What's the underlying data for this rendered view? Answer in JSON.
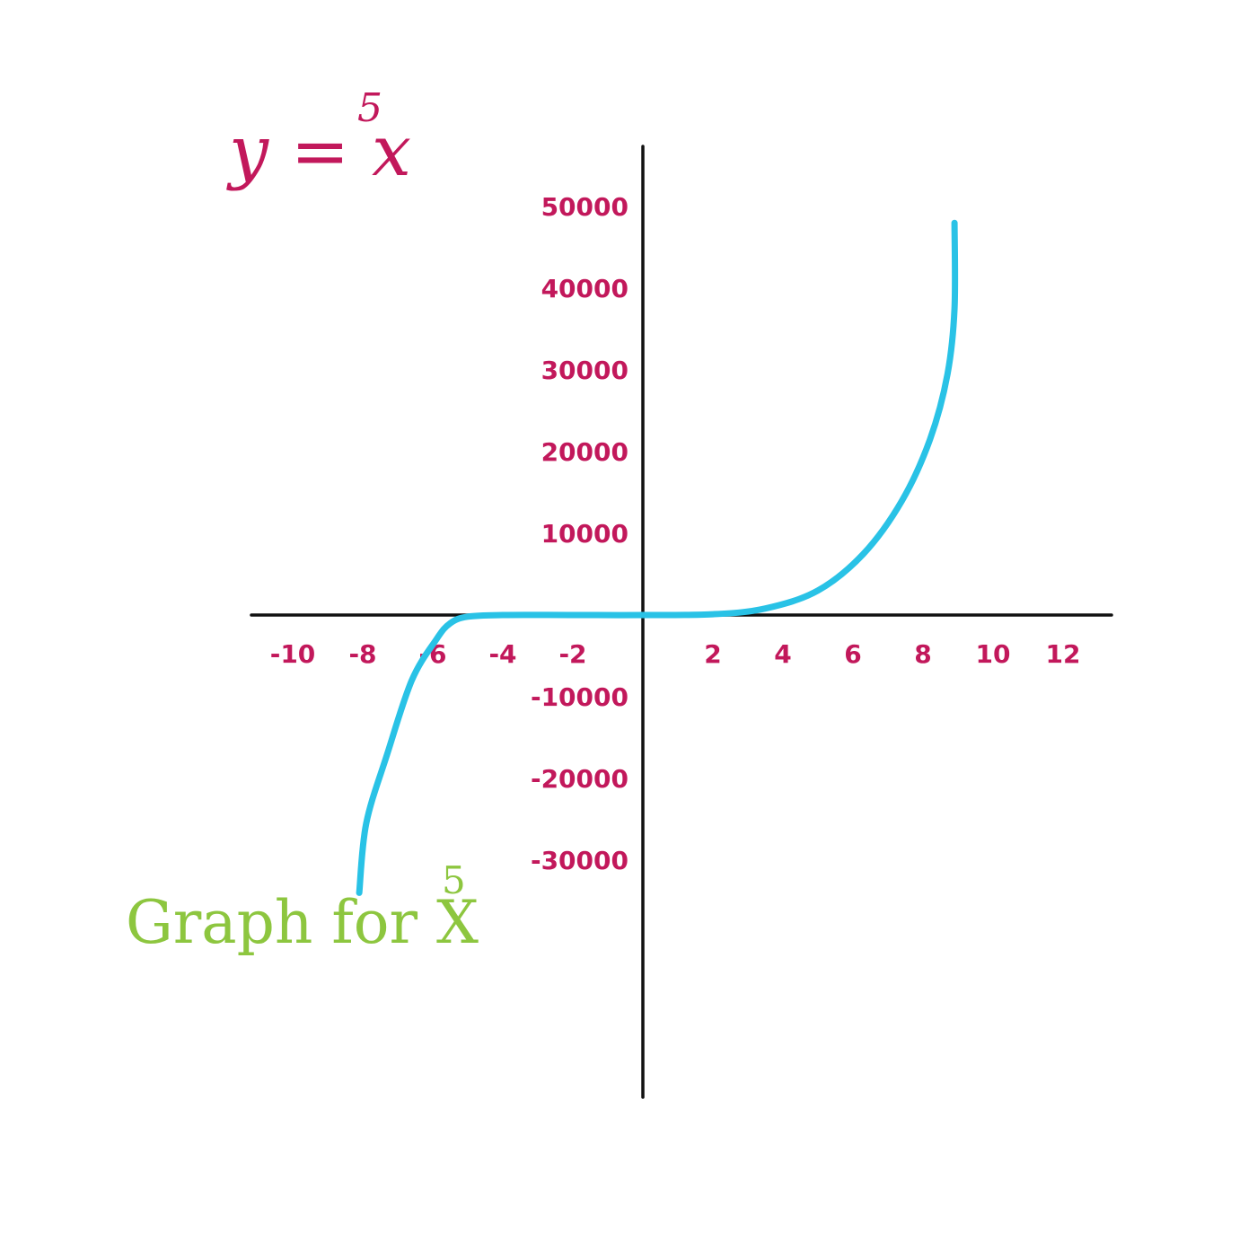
{
  "equation": {
    "base": "y = x",
    "exponent": "5"
  },
  "caption": {
    "base": "Graph for X",
    "exponent": "5"
  },
  "colors": {
    "axis": "#111111",
    "curve": "#29c2e6",
    "labels": "#c2185b",
    "caption": "#8dc63f"
  },
  "chart_data": {
    "type": "line",
    "title": "y = x5",
    "xlabel": "",
    "ylabel": "",
    "xlim": [
      -12,
      15
    ],
    "ylim": [
      -40000,
      55000
    ],
    "x_ticks": [
      {
        "value": -10,
        "label": "-10"
      },
      {
        "value": -8,
        "label": "-8"
      },
      {
        "value": -6,
        "label": "-6"
      },
      {
        "value": -4,
        "label": "-4"
      },
      {
        "value": -2,
        "label": "-2"
      },
      {
        "value": 2,
        "label": "2"
      },
      {
        "value": 4,
        "label": "4"
      },
      {
        "value": 6,
        "label": "6"
      },
      {
        "value": 8,
        "label": "8"
      },
      {
        "value": 10,
        "label": "10"
      },
      {
        "value": 12,
        "label": "12"
      }
    ],
    "y_ticks": [
      {
        "value": 50000,
        "label": "50000"
      },
      {
        "value": 40000,
        "label": "40000"
      },
      {
        "value": 30000,
        "label": "30000"
      },
      {
        "value": 20000,
        "label": "20000"
      },
      {
        "value": 10000,
        "label": "10000"
      },
      {
        "value": -10000,
        "label": "-10000"
      },
      {
        "value": -20000,
        "label": "-20000"
      },
      {
        "value": -30000,
        "label": "-30000"
      }
    ],
    "series": [
      {
        "values": [
          {
            "x": -8.1,
            "y": -34000
          },
          {
            "x": -7.9,
            "y": -25500
          },
          {
            "x": -7.3,
            "y": -17000
          },
          {
            "x": -6.6,
            "y": -8000
          },
          {
            "x": -5.9,
            "y": -3000
          },
          {
            "x": -5.5,
            "y": -1000
          },
          {
            "x": -5.0,
            "y": -200
          },
          {
            "x": -4.0,
            "y": 0
          },
          {
            "x": -2.0,
            "y": 0
          },
          {
            "x": 0,
            "y": 0
          },
          {
            "x": 2.0,
            "y": 100
          },
          {
            "x": 3.5,
            "y": 800
          },
          {
            "x": 5.0,
            "y": 3000
          },
          {
            "x": 6.3,
            "y": 7500
          },
          {
            "x": 7.4,
            "y": 14000
          },
          {
            "x": 8.2,
            "y": 21500
          },
          {
            "x": 8.7,
            "y": 29500
          },
          {
            "x": 8.9,
            "y": 37500
          },
          {
            "x": 8.9,
            "y": 48000
          }
        ]
      }
    ]
  }
}
